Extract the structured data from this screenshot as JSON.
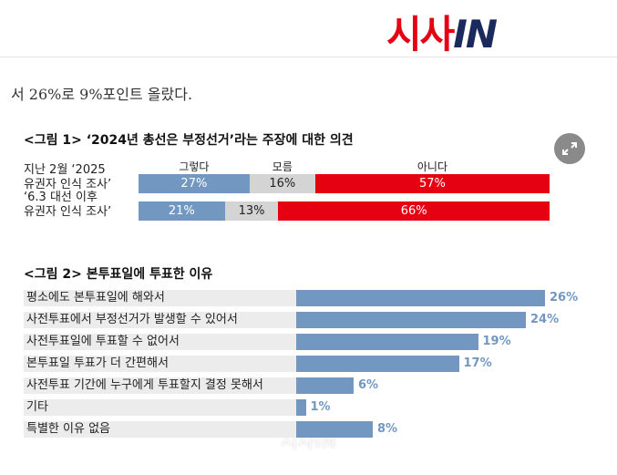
{
  "logo": {
    "red": "시사",
    "navy": "IN"
  },
  "article_text": "서 26%로 9%포인트 올랐다.",
  "watermark": "시사IN",
  "chart_data": [
    {
      "type": "stacked-bar",
      "title": "<그림 1> ‘2024년 총선은 부정선거’라는 주장에 대한 의견",
      "categories": [
        "지난 2월 ‘2025\n유권자 인식 조사’",
        "‘6.3 대선 이후\n유권자 인식 조사’"
      ],
      "series": [
        {
          "name": "그렇다",
          "color": "#7298c2",
          "values": [
            27,
            21
          ],
          "value_labels": [
            "27%",
            "21%"
          ]
        },
        {
          "name": "모름",
          "color": "#d4d4d4",
          "values": [
            16,
            13
          ],
          "value_labels": [
            "16%",
            "13%"
          ]
        },
        {
          "name": "아니다",
          "color": "#e50012",
          "values": [
            57,
            66
          ],
          "value_labels": [
            "57%",
            "66%"
          ]
        }
      ]
    },
    {
      "type": "bar",
      "title": "<그림 2> 본투표일에 투표한 이유",
      "categories": [
        "평소에도 본투표일에 해와서",
        "사전투표에서 부정선거가 발생할 수 있어서",
        "사전투표일에 투표할 수 없어서",
        "본투표일 투표가 더 간편해서",
        "사전투표 기간에 누구에게 투표할지 결정 못해서",
        "기타",
        "특별한 이유 없음"
      ],
      "values": [
        26,
        24,
        19,
        17,
        6,
        1,
        8
      ],
      "value_labels": [
        "26%",
        "24%",
        "19%",
        "17%",
        "6%",
        "1%",
        "8%"
      ],
      "color": "#7298c2"
    }
  ]
}
